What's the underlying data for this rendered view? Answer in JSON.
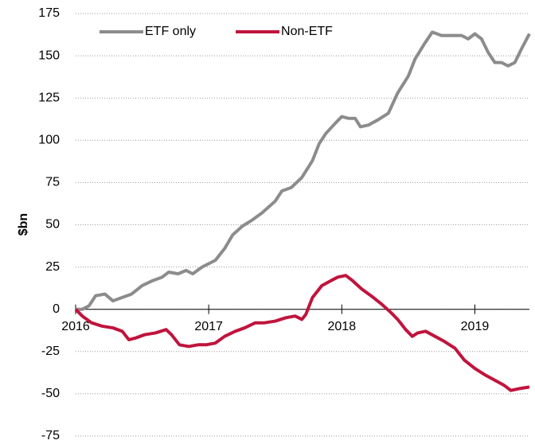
{
  "chart_data": {
    "type": "line",
    "ylabel": "$bn",
    "xlim": [
      2016,
      2019.41
    ],
    "xticks": [
      2016,
      2017,
      2018,
      2019
    ],
    "ylim": [
      -75,
      175
    ],
    "yticks": [
      -75,
      -50,
      -25,
      0,
      25,
      50,
      75,
      100,
      125,
      150,
      175
    ],
    "grid": true,
    "legend": "top-left",
    "series": [
      {
        "name": "ETF only",
        "color": "#8c8c8c",
        "x": [
          2016.0,
          2016.05,
          2016.1,
          2016.15,
          2016.22,
          2016.28,
          2016.35,
          2016.42,
          2016.5,
          2016.58,
          2016.65,
          2016.7,
          2016.77,
          2016.83,
          2016.88,
          2016.95,
          2017.0,
          2017.05,
          2017.12,
          2017.18,
          2017.25,
          2017.33,
          2017.4,
          2017.5,
          2017.55,
          2017.62,
          2017.7,
          2017.78,
          2017.83,
          2017.88,
          2017.95,
          2018.0,
          2018.05,
          2018.1,
          2018.14,
          2018.2,
          2018.27,
          2018.35,
          2018.42,
          2018.5,
          2018.55,
          2018.62,
          2018.68,
          2018.75,
          2018.82,
          2018.9,
          2018.95,
          2019.0,
          2019.05,
          2019.1,
          2019.15,
          2019.2,
          2019.25,
          2019.3,
          2019.35,
          2019.41
        ],
        "values": [
          0,
          0,
          2,
          8,
          9,
          5,
          7,
          9,
          14,
          17,
          19,
          22,
          21,
          23,
          21,
          25,
          27,
          29,
          36,
          44,
          49,
          53,
          57,
          64,
          70,
          72,
          78,
          88,
          98,
          104,
          110,
          114,
          113,
          113,
          108,
          109,
          112,
          116,
          128,
          138,
          148,
          157,
          164,
          162,
          162,
          162,
          160,
          163,
          160,
          152,
          146,
          146,
          144,
          146,
          154,
          163
        ]
      },
      {
        "name": "Non-ETF",
        "color": "#c0143c",
        "x": [
          2016.0,
          2016.05,
          2016.12,
          2016.2,
          2016.28,
          2016.35,
          2016.4,
          2016.45,
          2016.52,
          2016.6,
          2016.68,
          2016.72,
          2016.78,
          2016.85,
          2016.92,
          2016.98,
          2017.05,
          2017.12,
          2017.2,
          2017.27,
          2017.35,
          2017.42,
          2017.5,
          2017.58,
          2017.65,
          2017.7,
          2017.73,
          2017.78,
          2017.85,
          2017.92,
          2017.97,
          2018.03,
          2018.08,
          2018.15,
          2018.22,
          2018.3,
          2018.37,
          2018.42,
          2018.48,
          2018.53,
          2018.57,
          2018.63,
          2018.7,
          2018.77,
          2018.85,
          2018.92,
          2019.0,
          2019.08,
          2019.15,
          2019.22,
          2019.27,
          2019.33,
          2019.41
        ],
        "values": [
          0,
          -4,
          -8,
          -10,
          -11,
          -13,
          -18,
          -17,
          -15,
          -14,
          -12,
          -15,
          -21,
          -22,
          -21,
          -21,
          -20,
          -16,
          -13,
          -11,
          -8,
          -8,
          -7,
          -5,
          -4,
          -6,
          -3,
          7,
          14,
          17,
          19,
          20,
          17,
          12,
          8,
          3,
          -2,
          -6,
          -12,
          -16,
          -14,
          -13,
          -16,
          -19,
          -23,
          -30,
          -35,
          -39,
          -42,
          -45,
          -48,
          -47,
          -46
        ]
      }
    ]
  }
}
